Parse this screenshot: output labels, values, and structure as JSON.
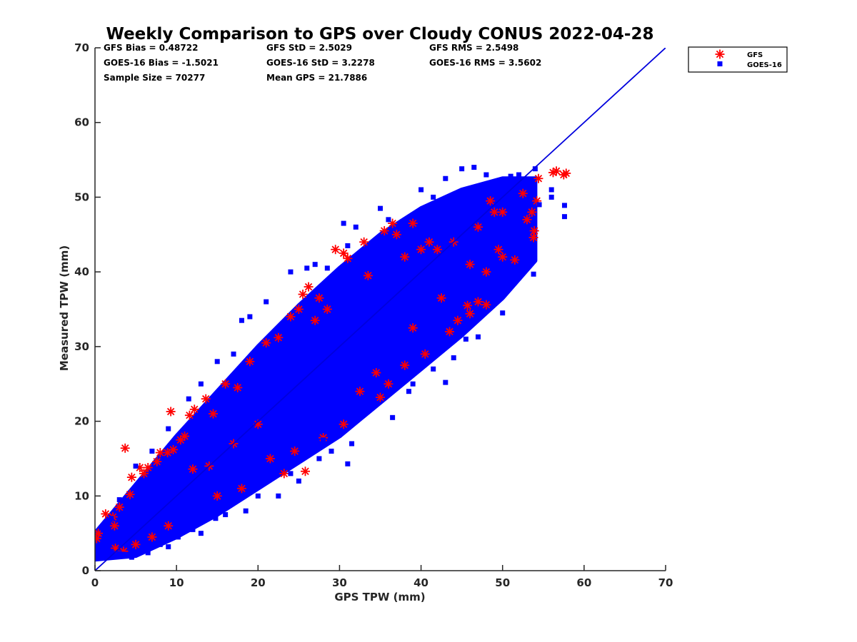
{
  "chart_data": {
    "type": "scatter",
    "title": "Weekly Comparison to GPS over Cloudy CONUS 2022-04-28",
    "xlabel": "GPS TPW (mm)",
    "ylabel": "Measured TPW (mm)",
    "xlim": [
      0,
      70
    ],
    "ylim": [
      0,
      70
    ],
    "xticks": [
      "0",
      "10",
      "20",
      "30",
      "40",
      "50",
      "60",
      "70"
    ],
    "yticks": [
      "0",
      "10",
      "20",
      "30",
      "40",
      "50",
      "60",
      "70"
    ],
    "grid": false,
    "legend_position": "outside-top-right",
    "reference_line": {
      "x": [
        0,
        70
      ],
      "y": [
        0,
        70
      ],
      "color": "#0000dd"
    },
    "stats": [
      [
        "GFS Bias = 0.48722",
        "GFS StD = 2.5029",
        "GFS RMS = 2.5498"
      ],
      [
        "GOES-16 Bias = -1.5021",
        "GOES-16 StD = 3.2278",
        "GOES-16 RMS = 3.5602"
      ],
      [
        "Sample Size = 70277",
        "Mean GPS = 21.7886",
        ""
      ]
    ],
    "series": [
      {
        "name": "GFS",
        "marker": "asterisk",
        "color": "#ff0000",
        "points": [
          [
            0.2,
            4.3
          ],
          [
            0.4,
            5.0
          ],
          [
            1.3,
            7.6
          ],
          [
            2.2,
            7.2
          ],
          [
            2.4,
            6.0
          ],
          [
            3.0,
            8.5
          ],
          [
            3.7,
            16.4
          ],
          [
            4.3,
            10.2
          ],
          [
            5.5,
            13.8
          ],
          [
            6.0,
            13.0
          ],
          [
            7.6,
            14.6
          ],
          [
            8.9,
            15.8
          ],
          [
            9.3,
            21.3
          ],
          [
            9.6,
            16.2
          ],
          [
            11.0,
            18.0
          ],
          [
            11.6,
            20.8
          ],
          [
            12.2,
            21.6
          ],
          [
            13.6,
            23.0
          ],
          [
            16.0,
            25.0
          ],
          [
            19.0,
            28.0
          ],
          [
            21.0,
            30.5
          ],
          [
            22.5,
            31.2
          ],
          [
            24.0,
            34.0
          ],
          [
            25.0,
            35.0
          ],
          [
            25.5,
            37.0
          ],
          [
            26.2,
            38.0
          ],
          [
            27.5,
            36.5
          ],
          [
            29.5,
            43.0
          ],
          [
            30.5,
            42.5
          ],
          [
            31.0,
            41.8
          ],
          [
            33.0,
            44.0
          ],
          [
            35.5,
            45.5
          ],
          [
            36.5,
            46.5
          ],
          [
            37.0,
            45.0
          ],
          [
            39.0,
            46.5
          ],
          [
            41.0,
            44.0
          ],
          [
            45.7,
            35.5
          ],
          [
            47.0,
            36.0
          ],
          [
            48.0,
            35.6
          ],
          [
            46.0,
            34.4
          ],
          [
            49.5,
            43.0
          ],
          [
            50.0,
            42.0
          ],
          [
            51.5,
            41.6
          ],
          [
            53.6,
            48.0
          ],
          [
            53.8,
            44.6
          ],
          [
            53.9,
            45.5
          ],
          [
            53.0,
            47.0
          ],
          [
            54.2,
            49.5
          ],
          [
            54.4,
            52.5
          ],
          [
            56.2,
            53.3
          ],
          [
            56.6,
            53.5
          ],
          [
            57.8,
            53.2
          ],
          [
            57.5,
            53.0
          ],
          [
            52.5,
            50.5
          ],
          [
            50.0,
            48.0
          ],
          [
            48.5,
            49.5
          ],
          [
            12.0,
            13.6
          ],
          [
            14.0,
            14.0
          ],
          [
            17.0,
            17.0
          ],
          [
            20.0,
            19.6
          ],
          [
            23.2,
            13.0
          ],
          [
            25.8,
            13.3
          ],
          [
            28.0,
            17.8
          ],
          [
            30.5,
            19.6
          ],
          [
            35.0,
            23.2
          ],
          [
            36.0,
            25.0
          ],
          [
            38.0,
            27.5
          ],
          [
            40.5,
            29.0
          ],
          [
            43.5,
            32.0
          ],
          [
            44.5,
            33.5
          ],
          [
            2.5,
            3.0
          ],
          [
            3.5,
            2.6
          ],
          [
            5.0,
            3.5
          ],
          [
            7.0,
            4.5
          ],
          [
            9.0,
            6.0
          ],
          [
            15.0,
            10.0
          ],
          [
            18.0,
            11.0
          ],
          [
            21.5,
            15.0
          ],
          [
            24.5,
            16.0
          ],
          [
            32.5,
            24.0
          ],
          [
            34.5,
            26.5
          ],
          [
            39.0,
            32.5
          ],
          [
            42.5,
            36.5
          ],
          [
            46.0,
            41.0
          ],
          [
            48.0,
            40.0
          ],
          [
            4.5,
            12.5
          ],
          [
            6.5,
            13.8
          ],
          [
            8.0,
            15.8
          ],
          [
            10.5,
            17.5
          ],
          [
            14.5,
            21.0
          ],
          [
            17.5,
            24.5
          ],
          [
            27.0,
            33.5
          ],
          [
            28.5,
            35.0
          ],
          [
            33.5,
            39.5
          ],
          [
            38.0,
            42.0
          ],
          [
            40.0,
            43.0
          ],
          [
            42.0,
            43.0
          ],
          [
            44.0,
            44.0
          ],
          [
            47.0,
            46.0
          ],
          [
            49.0,
            48.0
          ]
        ]
      },
      {
        "name": "GOES-16",
        "marker": "square",
        "color": "#0000ff",
        "points": [
          [
            0.2,
            2.1
          ],
          [
            0.5,
            3.0
          ],
          [
            1.5,
            3.3
          ],
          [
            2.0,
            2.6
          ],
          [
            3.0,
            2.3
          ],
          [
            3.5,
            2.2
          ],
          [
            4.0,
            2.0
          ],
          [
            5.5,
            2.5
          ],
          [
            6.2,
            3.0
          ],
          [
            8.0,
            3.5
          ],
          [
            10.2,
            4.5
          ],
          [
            12.0,
            5.5
          ],
          [
            14.8,
            7.0
          ],
          [
            18.5,
            8.0
          ],
          [
            22.5,
            10.0
          ],
          [
            25.0,
            12.0
          ],
          [
            27.5,
            15.0
          ],
          [
            29.0,
            16.0
          ],
          [
            31.0,
            14.3
          ],
          [
            31.5,
            17.0
          ],
          [
            32.5,
            21.0
          ],
          [
            36.5,
            20.5
          ],
          [
            38.5,
            24.0
          ],
          [
            43.0,
            25.2
          ],
          [
            47.0,
            31.3
          ],
          [
            53.8,
            39.7
          ],
          [
            57.6,
            48.9
          ],
          [
            57.6,
            47.4
          ],
          [
            56.0,
            50.0
          ],
          [
            56.0,
            51.0
          ],
          [
            54.0,
            53.8
          ],
          [
            52.0,
            53.0
          ],
          [
            48.0,
            53.0
          ],
          [
            46.5,
            54.0
          ],
          [
            45.0,
            53.8
          ],
          [
            43.0,
            52.5
          ],
          [
            40.0,
            51.0
          ],
          [
            35.0,
            48.5
          ],
          [
            32.0,
            46.0
          ],
          [
            27.0,
            41.0
          ],
          [
            24.0,
            40.0
          ],
          [
            21.0,
            36.0
          ],
          [
            18.0,
            33.5
          ],
          [
            17.0,
            29.0
          ],
          [
            13.0,
            25.0
          ],
          [
            11.5,
            23.0
          ],
          [
            9.0,
            19.0
          ],
          [
            7.0,
            16.0
          ],
          [
            5.0,
            14.0
          ],
          [
            3.0,
            9.5
          ],
          [
            2.0,
            7.0
          ],
          [
            1.0,
            5.5
          ],
          [
            15.0,
            28.0
          ],
          [
            19.0,
            34.0
          ],
          [
            26.0,
            40.5
          ],
          [
            30.5,
            46.5
          ],
          [
            36.0,
            47.0
          ],
          [
            41.5,
            50.0
          ],
          [
            49.5,
            52.0
          ],
          [
            54.5,
            49.0
          ],
          [
            50.0,
            34.5
          ],
          [
            45.5,
            31.0
          ],
          [
            44.0,
            28.5
          ],
          [
            41.5,
            27.0
          ],
          [
            39.0,
            25.0
          ],
          [
            35.0,
            24.5
          ],
          [
            28.0,
            17.5
          ],
          [
            24.0,
            13.0
          ],
          [
            20.0,
            10.0
          ],
          [
            16.0,
            7.5
          ],
          [
            13.0,
            5.0
          ],
          [
            9.0,
            3.2
          ],
          [
            6.5,
            2.4
          ],
          [
            4.5,
            1.8
          ],
          [
            42.5,
            49.5
          ],
          [
            47.5,
            50.5
          ],
          [
            53.0,
            52.0
          ],
          [
            51.0,
            52.8
          ],
          [
            31.0,
            43.5
          ],
          [
            28.5,
            40.5
          ]
        ]
      }
    ],
    "dense_band": [
      [
        0,
        1.5,
        5.0
      ],
      [
        5,
        2.0,
        11.5
      ],
      [
        10,
        4.5,
        18.0
      ],
      [
        15,
        7.5,
        24.0
      ],
      [
        20,
        11.0,
        30.0
      ],
      [
        25,
        14.5,
        35.5
      ],
      [
        30,
        18.0,
        40.5
      ],
      [
        35,
        22.5,
        45.0
      ],
      [
        40,
        27.0,
        48.5
      ],
      [
        45,
        31.5,
        51.0
      ],
      [
        50,
        36.5,
        52.5
      ],
      [
        54,
        41.5,
        52.5
      ]
    ]
  }
}
